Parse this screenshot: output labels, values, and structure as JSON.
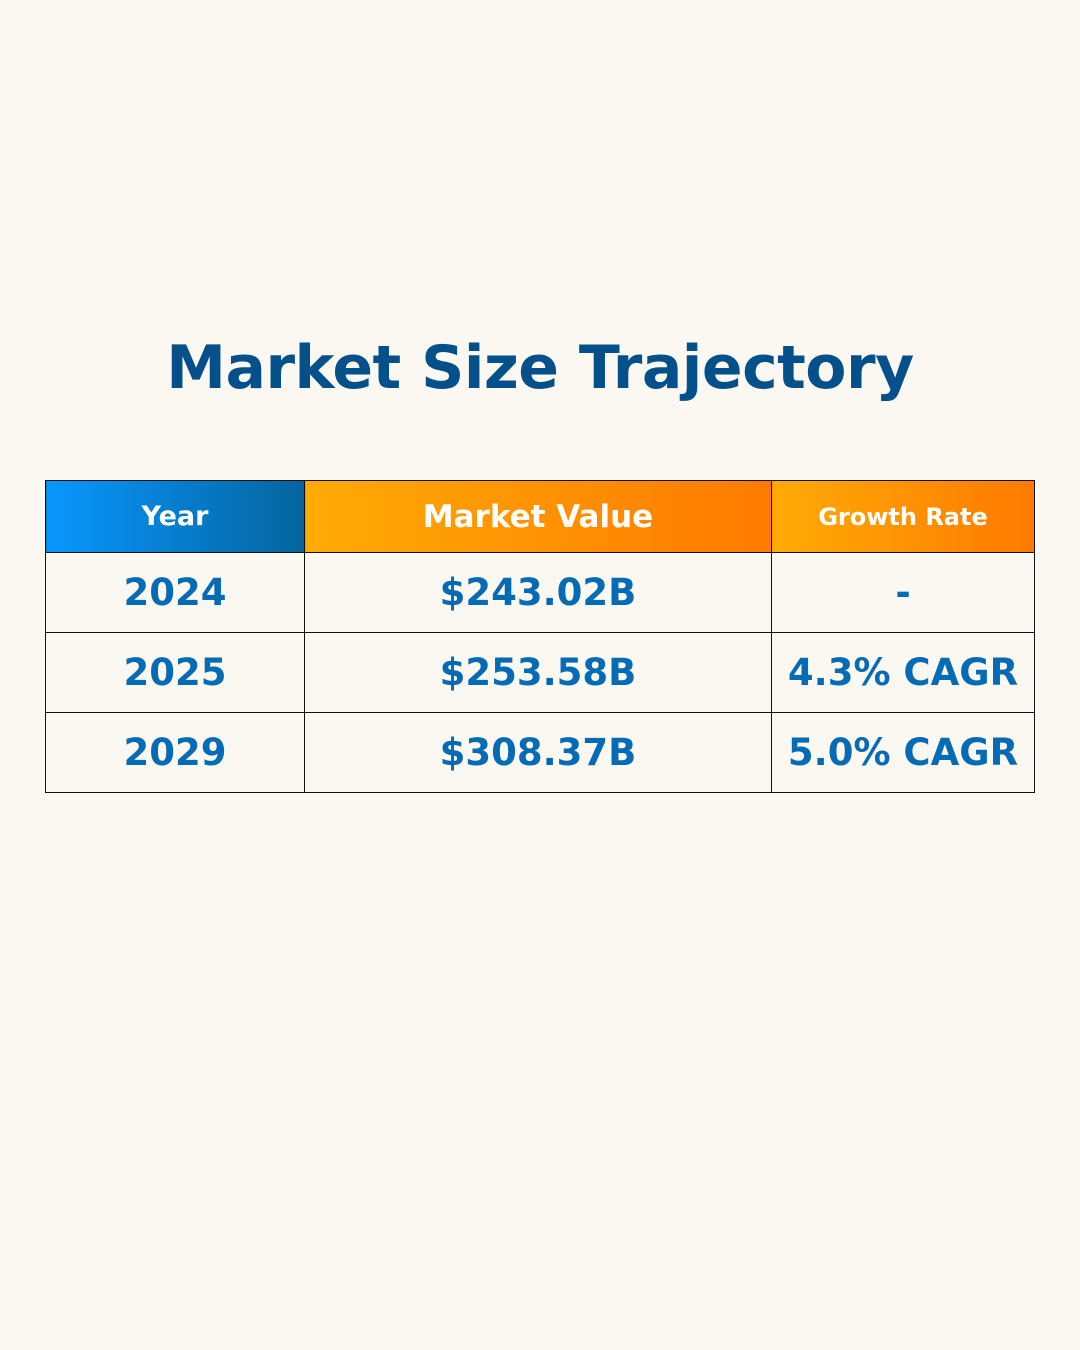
{
  "title": "Market Size Trajectory",
  "table": {
    "headers": [
      "Year",
      "Market Value",
      "Growth Rate"
    ],
    "rows": [
      {
        "year": "2024",
        "value": "$243.02B",
        "growth": "-"
      },
      {
        "year": "2025",
        "value": "$253.58B",
        "growth": "4.3% CAGR"
      },
      {
        "year": "2029",
        "value": "$308.37B",
        "growth": "5.0% CAGR"
      }
    ]
  },
  "colors": {
    "background": "#fbf8f2",
    "title": "#04508a",
    "cell_text": "#066bb5",
    "year_header_gradient": [
      "#0897ff",
      "#05649e"
    ],
    "orange_header_gradient": [
      "#ffab05",
      "#ff7a00"
    ]
  },
  "chart_data": {
    "type": "table",
    "title": "Market Size Trajectory",
    "columns": [
      "Year",
      "Market Value",
      "Growth Rate"
    ],
    "rows": [
      [
        "2024",
        "$243.02B",
        "-"
      ],
      [
        "2025",
        "$253.58B",
        "4.3% CAGR"
      ],
      [
        "2029",
        "$308.37B",
        "5.0% CAGR"
      ]
    ],
    "x": [
      2024,
      2025,
      2029
    ],
    "series": [
      {
        "name": "Market Value (USD billions)",
        "values": [
          243.02,
          253.58,
          308.37
        ]
      },
      {
        "name": "Growth Rate (CAGR %)",
        "values": [
          null,
          4.3,
          5.0
        ]
      }
    ]
  }
}
